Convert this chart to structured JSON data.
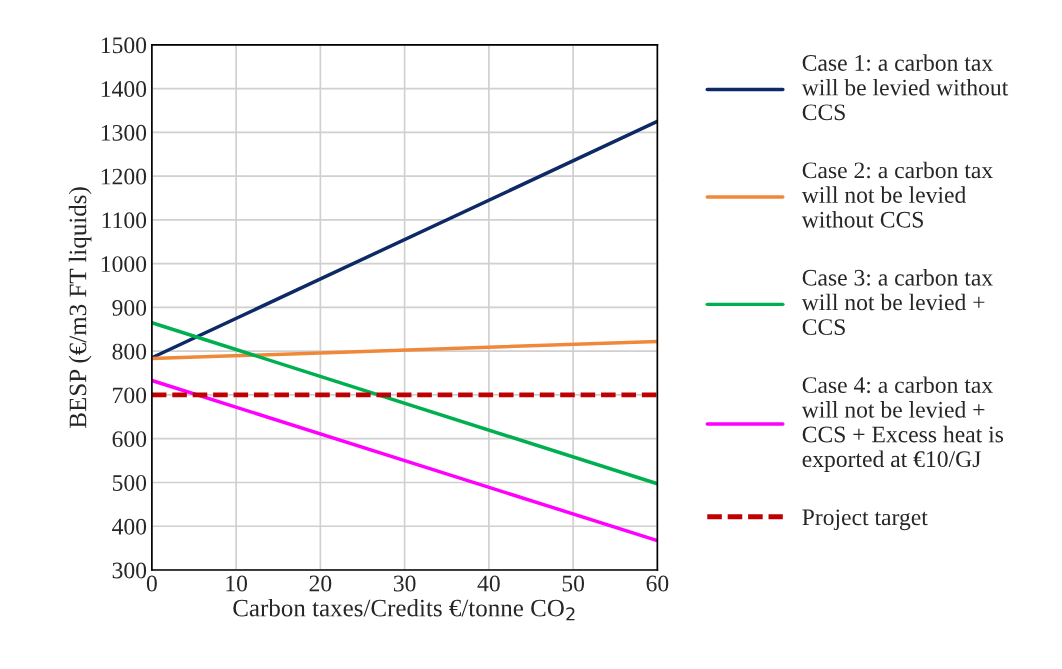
{
  "chart_data": {
    "type": "line",
    "xlabel": "Carbon taxes/Credits €/tonne CO$_{2}$",
    "ylabel": "BESP (€/m3 FT liquids)",
    "x": [
      0,
      60
    ],
    "series": [
      {
        "name": "Case 1: a carbon tax will be levied without CCS",
        "color": "#0d2a66",
        "values": [
          785,
          1325
        ]
      },
      {
        "name": "Case 2: a carbon tax will not be levied without CCS",
        "color": "#f0883a",
        "values": [
          783,
          822
        ]
      },
      {
        "name": "Case 3: a carbon tax will not be levied + CCS",
        "color": "#00b050",
        "values": [
          865,
          497
        ]
      },
      {
        "name": "Case 4: a carbon tax will not be levied + CCS + Excess heat is exported at €10/GJ",
        "color": "#ff00ff",
        "values": [
          733,
          367
        ]
      },
      {
        "name": "Project target",
        "color": "#c00000",
        "values": [
          700,
          700
        ],
        "line_style": "dashed"
      }
    ],
    "xlim": [
      0,
      60
    ],
    "xticks": [
      0,
      10,
      20,
      30,
      40,
      50,
      60
    ],
    "ylim": [
      300,
      1500
    ],
    "yticks": [
      300,
      400,
      500,
      600,
      700,
      800,
      900,
      1000,
      1100,
      1200,
      1300,
      1400,
      1500
    ],
    "grid": true,
    "legend": "right",
    "marker": "none",
    "line_style": "solid"
  }
}
